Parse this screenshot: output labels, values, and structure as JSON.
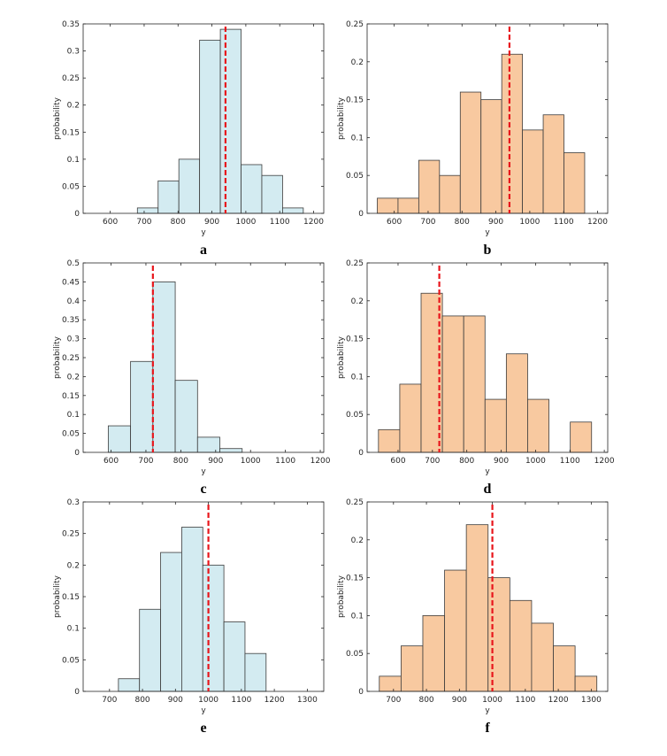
{
  "colors": {
    "blue_fill": "#d3ebf1",
    "orange_fill": "#f8c9a0",
    "bar_edge": "#3c3c3c",
    "mean_line": "#e8161c",
    "axis": "#262626"
  },
  "chart_data": [
    {
      "panel": "a",
      "type": "bar",
      "fill": "blue",
      "xlabel": "y",
      "ylabel": "probability",
      "xlim": [
        520,
        1230
      ],
      "ylim": [
        0,
        0.35
      ],
      "xticks": [
        600,
        700,
        800,
        900,
        1000,
        1100,
        1200
      ],
      "yticks": [
        0,
        0.05,
        0.1,
        0.15,
        0.2,
        0.25,
        0.3,
        0.35
      ],
      "bin_width": 61.2,
      "bins": [
        {
          "start": 680,
          "value": 0.01
        },
        {
          "start": 741.2,
          "value": 0.06
        },
        {
          "start": 802.4,
          "value": 0.1
        },
        {
          "start": 863.6,
          "value": 0.32
        },
        {
          "start": 924.8,
          "value": 0.34
        },
        {
          "start": 986,
          "value": 0.09
        },
        {
          "start": 1047.2,
          "value": 0.07
        },
        {
          "start": 1108.4,
          "value": 0.01
        }
      ],
      "reference_line": 940
    },
    {
      "panel": "b",
      "type": "bar",
      "fill": "orange",
      "xlabel": "y",
      "ylabel": "probability",
      "xlim": [
        520,
        1230
      ],
      "ylim": [
        0,
        0.25
      ],
      "xticks": [
        600,
        700,
        800,
        900,
        1000,
        1100,
        1200
      ],
      "yticks": [
        0,
        0.05,
        0.1,
        0.15,
        0.2,
        0.25
      ],
      "bin_width": 61.2,
      "bins": [
        {
          "start": 550,
          "value": 0.02
        },
        {
          "start": 611.2,
          "value": 0.02
        },
        {
          "start": 672.4,
          "value": 0.07
        },
        {
          "start": 733.6,
          "value": 0.05
        },
        {
          "start": 794.8,
          "value": 0.16
        },
        {
          "start": 856,
          "value": 0.15
        },
        {
          "start": 917.2,
          "value": 0.21
        },
        {
          "start": 978.4,
          "value": 0.11
        },
        {
          "start": 1039.6,
          "value": 0.13
        },
        {
          "start": 1100.8,
          "value": 0.08
        }
      ],
      "reference_line": 940
    },
    {
      "panel": "c",
      "type": "bar",
      "fill": "blue",
      "xlabel": "y",
      "ylabel": "probability",
      "xlim": [
        520,
        1210
      ],
      "ylim": [
        0,
        0.5
      ],
      "xticks": [
        600,
        700,
        800,
        900,
        1000,
        1100,
        1200
      ],
      "yticks": [
        0,
        0.05,
        0.1,
        0.15,
        0.2,
        0.25,
        0.3,
        0.35,
        0.4,
        0.45,
        0.5
      ],
      "bin_width": 64,
      "bins": [
        {
          "start": 592,
          "value": 0.07
        },
        {
          "start": 656,
          "value": 0.24
        },
        {
          "start": 720,
          "value": 0.45
        },
        {
          "start": 784,
          "value": 0.19
        },
        {
          "start": 848,
          "value": 0.04
        },
        {
          "start": 912,
          "value": 0.01
        }
      ],
      "reference_line": 720
    },
    {
      "panel": "d",
      "type": "bar",
      "fill": "orange",
      "xlabel": "y",
      "ylabel": "probability",
      "xlim": [
        510,
        1210
      ],
      "ylim": [
        0,
        0.25
      ],
      "xticks": [
        600,
        700,
        800,
        900,
        1000,
        1100,
        1200
      ],
      "yticks": [
        0,
        0.05,
        0.1,
        0.15,
        0.2,
        0.25
      ],
      "bin_width": 62,
      "bins": [
        {
          "start": 543,
          "value": 0.03
        },
        {
          "start": 605,
          "value": 0.09
        },
        {
          "start": 667,
          "value": 0.21
        },
        {
          "start": 729,
          "value": 0.18
        },
        {
          "start": 791,
          "value": 0.18
        },
        {
          "start": 853,
          "value": 0.07
        },
        {
          "start": 915,
          "value": 0.13
        },
        {
          "start": 977,
          "value": 0.07
        },
        {
          "start": 1039,
          "value": 0.0
        },
        {
          "start": 1101,
          "value": 0.04
        }
      ],
      "reference_line": 720
    },
    {
      "panel": "e",
      "type": "bar",
      "fill": "blue",
      "xlabel": "y",
      "ylabel": "probability",
      "xlim": [
        620,
        1350
      ],
      "ylim": [
        0,
        0.3
      ],
      "xticks": [
        700,
        800,
        900,
        1000,
        1100,
        1200,
        1300
      ],
      "yticks": [
        0,
        0.05,
        0.1,
        0.15,
        0.2,
        0.25,
        0.3
      ],
      "bin_width": 64,
      "bins": [
        {
          "start": 727,
          "value": 0.02
        },
        {
          "start": 791,
          "value": 0.13
        },
        {
          "start": 855,
          "value": 0.22
        },
        {
          "start": 919,
          "value": 0.26
        },
        {
          "start": 983,
          "value": 0.2
        },
        {
          "start": 1047,
          "value": 0.11
        },
        {
          "start": 1111,
          "value": 0.06
        }
      ],
      "reference_line": 1000
    },
    {
      "panel": "f",
      "type": "bar",
      "fill": "orange",
      "xlabel": "y",
      "ylabel": "probability",
      "xlim": [
        620,
        1350
      ],
      "ylim": [
        0,
        0.25
      ],
      "xticks": [
        700,
        800,
        900,
        1000,
        1100,
        1200,
        1300
      ],
      "yticks": [
        0,
        0.05,
        0.1,
        0.15,
        0.2,
        0.25
      ],
      "bin_width": 66,
      "bins": [
        {
          "start": 657,
          "value": 0.02
        },
        {
          "start": 723,
          "value": 0.06
        },
        {
          "start": 789,
          "value": 0.1
        },
        {
          "start": 855,
          "value": 0.16
        },
        {
          "start": 921,
          "value": 0.22
        },
        {
          "start": 987,
          "value": 0.15
        },
        {
          "start": 1053,
          "value": 0.12
        },
        {
          "start": 1119,
          "value": 0.09
        },
        {
          "start": 1185,
          "value": 0.06
        },
        {
          "start": 1251,
          "value": 0.02
        }
      ],
      "reference_line": 1000
    }
  ]
}
